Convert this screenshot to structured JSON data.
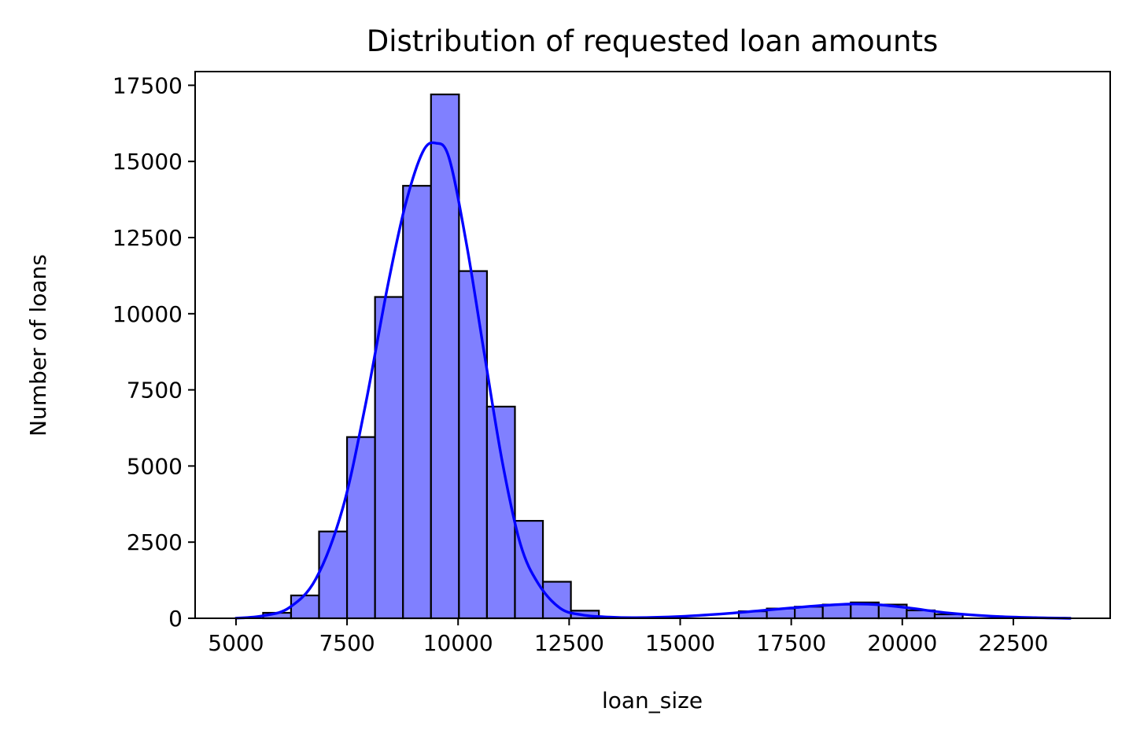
{
  "chart_data": {
    "type": "bar",
    "title": "Distribution of requested loan amounts",
    "xlabel": "loan_size",
    "ylabel": "Number of loans",
    "xlim": [
      4080,
      24680
    ],
    "ylim": [
      0,
      17950
    ],
    "xticks": [
      5000,
      7500,
      10000,
      12500,
      15000,
      17500,
      20000,
      22500
    ],
    "yticks": [
      0,
      2500,
      5000,
      7500,
      10000,
      12500,
      15000,
      17500
    ],
    "grid": false,
    "bin_edges": [
      4980,
      5610,
      6240,
      6870,
      7500,
      8130,
      8760,
      9390,
      10020,
      10650,
      11280,
      11910,
      12540,
      13170,
      13800,
      14430,
      15060,
      15690,
      16320,
      16950,
      17580,
      18210,
      18840,
      19470,
      20100,
      20730,
      21360,
      21990,
      22620,
      23250,
      23880
    ],
    "values": [
      0,
      180,
      750,
      2850,
      5950,
      10550,
      14200,
      17200,
      11400,
      6950,
      3200,
      1200,
      250,
      0,
      0,
      0,
      0,
      0,
      230,
      320,
      380,
      450,
      520,
      450,
      260,
      130,
      0,
      0,
      0,
      0
    ],
    "kde": {
      "x": [
        4980,
        5600,
        6200,
        6800,
        7400,
        7900,
        8400,
        8800,
        9200,
        9500,
        9800,
        10200,
        10600,
        11000,
        11400,
        11800,
        12300,
        12800,
        13400,
        14000,
        15000,
        16000,
        16800,
        17500,
        18200,
        18900,
        19500,
        20200,
        21000,
        22000,
        23000,
        23800
      ],
      "y": [
        0,
        80,
        350,
        1300,
        3600,
        6900,
        10800,
        13500,
        15300,
        15600,
        15100,
        12200,
        8600,
        5100,
        2450,
        1150,
        330,
        110,
        40,
        20,
        60,
        150,
        250,
        340,
        420,
        470,
        440,
        330,
        180,
        70,
        20,
        0
      ]
    },
    "colors": {
      "bar_fill": "#8080ff",
      "bar_edge": "#000000",
      "kde_line": "#0000ff"
    }
  }
}
